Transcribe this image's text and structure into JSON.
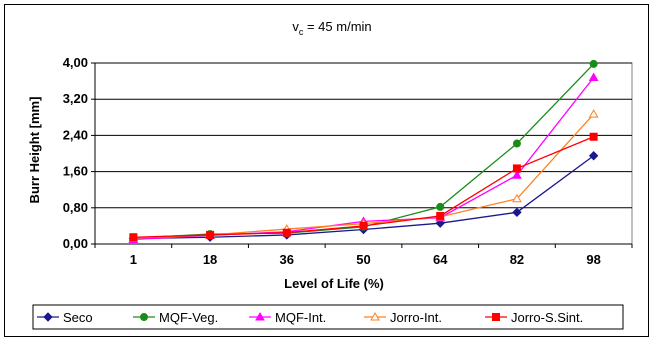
{
  "chart_data": {
    "type": "line",
    "title": "v",
    "title_sub": "c",
    "title_rest": " = 45 m/min",
    "xlabel": "Level of Life (%)",
    "ylabel": "Burr Height [mm]",
    "categories": [
      "1",
      "18",
      "36",
      "50",
      "64",
      "82",
      "98"
    ],
    "yticks": [
      "0,00",
      "0,80",
      "1,60",
      "2,40",
      "3,20",
      "4,00"
    ],
    "ylim": [
      0,
      4
    ],
    "grid": true,
    "legend_position": "bottom",
    "series": [
      {
        "name": "Seco",
        "color": "#1a1a8c",
        "marker": "diamond",
        "values": [
          0.12,
          0.15,
          0.2,
          0.32,
          0.46,
          0.7,
          1.95
        ]
      },
      {
        "name": "MQF-Veg.",
        "color": "#1a8c1a",
        "marker": "circle",
        "values": [
          0.13,
          0.22,
          0.24,
          0.38,
          0.82,
          2.22,
          3.98
        ]
      },
      {
        "name": "MQF-Int.",
        "color": "#ff00ff",
        "marker": "triangle",
        "values": [
          0.1,
          0.19,
          0.27,
          0.5,
          0.58,
          1.52,
          3.68
        ]
      },
      {
        "name": "Jorro-Int.",
        "color": "#ff8020",
        "marker": "triangle-open",
        "values": [
          0.13,
          0.2,
          0.33,
          0.45,
          0.6,
          1.0,
          2.87
        ]
      },
      {
        "name": "Jorro-S.Sint.",
        "color": "#ff0000",
        "marker": "square",
        "values": [
          0.15,
          0.2,
          0.25,
          0.4,
          0.62,
          1.67,
          2.37
        ]
      }
    ]
  }
}
